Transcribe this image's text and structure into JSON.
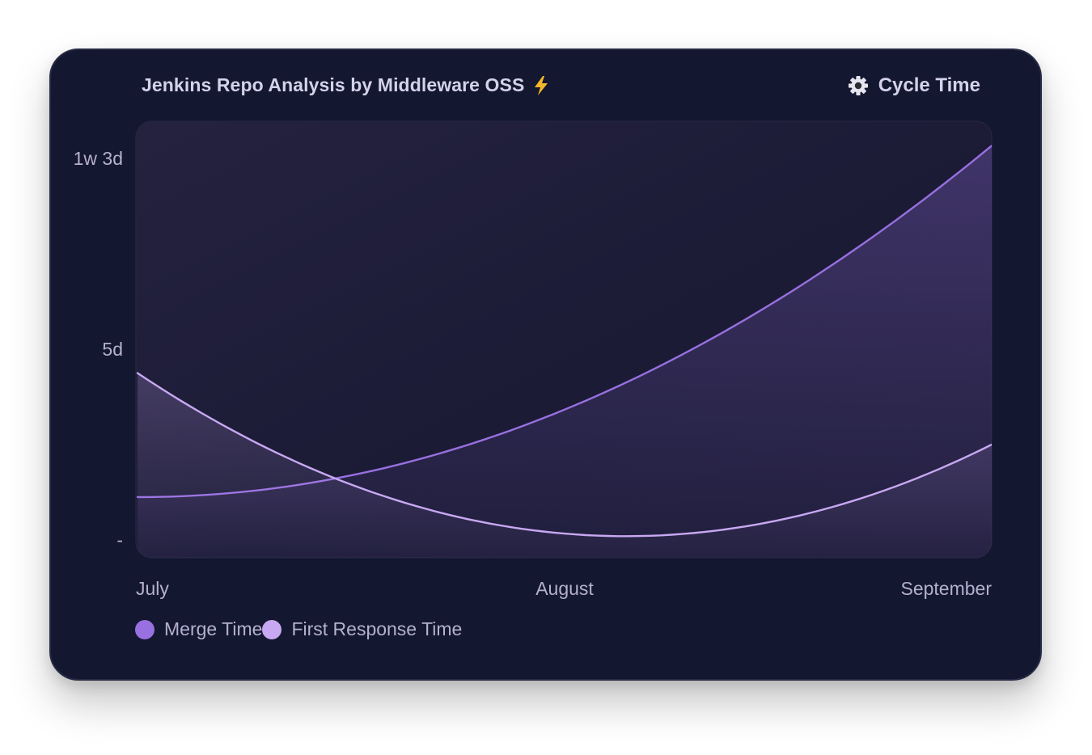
{
  "header": {
    "title": "Jenkins Repo Analysis by Middleware OSS",
    "title_icon": "lightning-bolt-icon",
    "metric_label": "Cycle Time",
    "metric_icon": "gear-icon"
  },
  "colors": {
    "card_background": "#13172f",
    "plot_background": "#1f1e3b",
    "merge_time": "#9870e0",
    "first_response_time": "#c8a8f2",
    "text": "#b5b0cf"
  },
  "chart_data": {
    "type": "area",
    "categories": [
      "July",
      "August",
      "September"
    ],
    "y_ticks": [
      {
        "value": 0,
        "label": "-"
      },
      {
        "value": 120,
        "label": "5d"
      },
      {
        "value": 240,
        "label": "1w 3d"
      }
    ],
    "y_unit": "hours",
    "ylim": [
      0,
      262
    ],
    "series": [
      {
        "name": "Merge Time",
        "values": [
          27,
          82,
          248
        ]
      },
      {
        "name": "First Response Time",
        "values": [
          105,
          4,
          60
        ]
      }
    ],
    "grid": false,
    "legend_position": "bottom-left"
  }
}
